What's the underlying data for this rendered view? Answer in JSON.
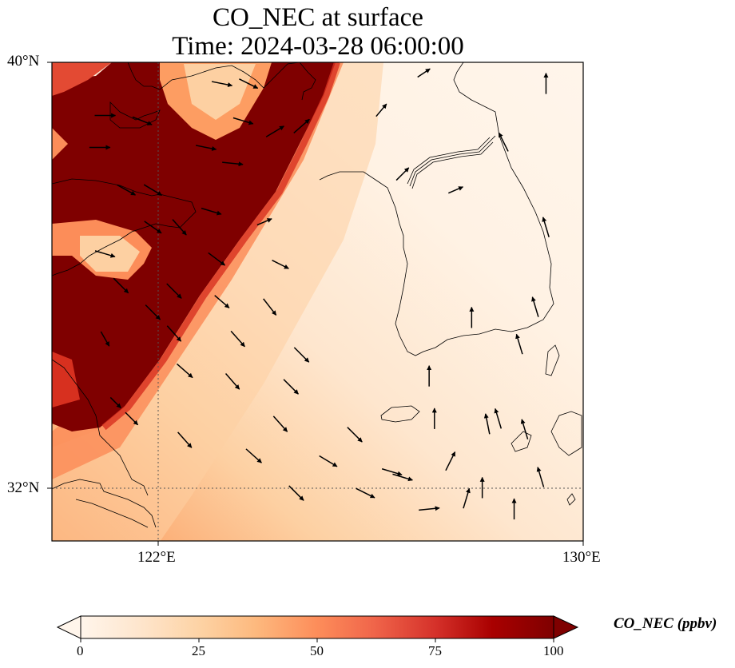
{
  "title": {
    "line1": "CO_NEC at surface",
    "line2": "Time: 2024-03-28 06:00:00"
  },
  "map": {
    "lon_range": [
      120,
      130
    ],
    "lat_range": [
      31,
      40
    ],
    "gridlines": {
      "lon": [
        122
      ],
      "lat": [
        32
      ]
    },
    "ticks": {
      "lat": [
        {
          "value": 40,
          "label": "40°N"
        },
        {
          "value": 32,
          "label": "32°N"
        }
      ],
      "lon": [
        {
          "value": 122,
          "label": "122°E"
        },
        {
          "value": 130,
          "label": "130°E"
        }
      ]
    }
  },
  "chart_data": {
    "type": "heatmap",
    "title": "CO_NEC at surface",
    "subtitle": "Time: 2024-03-28 06:00:00",
    "variable": "CO_NEC",
    "units": "ppbv",
    "colorbar": {
      "label": "CO_NEC (ppbv)",
      "range": [
        0,
        100
      ],
      "ticks": [
        0,
        25,
        50,
        75,
        100
      ],
      "extend": "both",
      "colormap": [
        "#fff5eb",
        "#fee6ce",
        "#fdd0a2",
        "#fdae6b",
        "#fd8d3c",
        "#f16913",
        "#e34a33",
        "#b30000",
        "#7f0000"
      ]
    },
    "plume": {
      "description_values": "saturated (>=100 ppbv) band from NW to SW of domain",
      "max_value": 100,
      "background_value": 3
    },
    "wind_vectors": [
      {
        "lon": 123.2,
        "lat": 39.6,
        "u": 1,
        "v": -0.2
      },
      {
        "lon": 123.7,
        "lat": 39.6,
        "u": 1,
        "v": -0.5
      },
      {
        "lon": 121.0,
        "lat": 39.0,
        "u": 1,
        "v": 0
      },
      {
        "lon": 121.7,
        "lat": 38.9,
        "u": 1,
        "v": -0.4
      },
      {
        "lon": 123.6,
        "lat": 38.9,
        "u": 1,
        "v": -0.3
      },
      {
        "lon": 124.2,
        "lat": 38.7,
        "u": 1,
        "v": 0.6
      },
      {
        "lon": 124.7,
        "lat": 38.8,
        "u": 0.8,
        "v": 0.7
      },
      {
        "lon": 120.9,
        "lat": 38.4,
        "u": 1,
        "v": 0
      },
      {
        "lon": 122.9,
        "lat": 38.4,
        "u": 1,
        "v": -0.2
      },
      {
        "lon": 123.4,
        "lat": 38.1,
        "u": 1,
        "v": -0.1
      },
      {
        "lon": 121.4,
        "lat": 37.6,
        "u": 0.9,
        "v": -0.5
      },
      {
        "lon": 121.9,
        "lat": 37.6,
        "u": 1,
        "v": -0.6
      },
      {
        "lon": 123.0,
        "lat": 37.2,
        "u": 1,
        "v": -0.3
      },
      {
        "lon": 124.0,
        "lat": 37.0,
        "u": 0.7,
        "v": 0.3
      },
      {
        "lon": 121.9,
        "lat": 36.9,
        "u": 1,
        "v": -0.7
      },
      {
        "lon": 122.4,
        "lat": 36.9,
        "u": 0.8,
        "v": -0.9
      },
      {
        "lon": 121.0,
        "lat": 36.4,
        "u": 1,
        "v": -0.3
      },
      {
        "lon": 123.1,
        "lat": 36.3,
        "u": 0.8,
        "v": -0.6
      },
      {
        "lon": 124.3,
        "lat": 36.2,
        "u": 0.8,
        "v": -0.4
      },
      {
        "lon": 121.3,
        "lat": 35.8,
        "u": 0.8,
        "v": -0.8
      },
      {
        "lon": 122.3,
        "lat": 35.7,
        "u": 0.8,
        "v": -0.8
      },
      {
        "lon": 123.2,
        "lat": 35.5,
        "u": 0.7,
        "v": -0.6
      },
      {
        "lon": 124.1,
        "lat": 35.4,
        "u": 0.7,
        "v": -0.9
      },
      {
        "lon": 121.9,
        "lat": 35.3,
        "u": 0.8,
        "v": -0.8
      },
      {
        "lon": 121.0,
        "lat": 34.8,
        "u": 0.4,
        "v": -0.7
      },
      {
        "lon": 122.3,
        "lat": 34.9,
        "u": 0.8,
        "v": -0.9
      },
      {
        "lon": 123.5,
        "lat": 34.8,
        "u": 0.8,
        "v": -0.9
      },
      {
        "lon": 124.7,
        "lat": 34.5,
        "u": 1,
        "v": -1
      },
      {
        "lon": 122.5,
        "lat": 34.2,
        "u": 0.8,
        "v": -0.7
      },
      {
        "lon": 123.4,
        "lat": 34.0,
        "u": 0.7,
        "v": -0.8
      },
      {
        "lon": 124.5,
        "lat": 33.9,
        "u": 1,
        "v": -1.0
      },
      {
        "lon": 121.2,
        "lat": 33.6,
        "u": 0.5,
        "v": -0.5
      },
      {
        "lon": 121.5,
        "lat": 33.3,
        "u": 0.6,
        "v": -0.6
      },
      {
        "lon": 124.3,
        "lat": 33.2,
        "u": 0.8,
        "v": -0.9
      },
      {
        "lon": 125.7,
        "lat": 33.0,
        "u": 0.8,
        "v": -0.8
      },
      {
        "lon": 122.5,
        "lat": 32.9,
        "u": 0.8,
        "v": -0.9
      },
      {
        "lon": 123.8,
        "lat": 32.6,
        "u": 0.9,
        "v": -0.8
      },
      {
        "lon": 125.2,
        "lat": 32.5,
        "u": 1,
        "v": -0.6
      },
      {
        "lon": 126.4,
        "lat": 32.3,
        "u": 1,
        "v": -0.3
      },
      {
        "lon": 127.5,
        "lat": 32.5,
        "u": 0.5,
        "v": 1
      },
      {
        "lon": 128.2,
        "lat": 33.2,
        "u": -0.2,
        "v": 1
      },
      {
        "lon": 127.2,
        "lat": 33.3,
        "u": 0,
        "v": 1
      },
      {
        "lon": 126.6,
        "lat": 32.2,
        "u": 1,
        "v": -0.3
      },
      {
        "lon": 124.6,
        "lat": 31.9,
        "u": 0.8,
        "v": -0.8
      },
      {
        "lon": 125.9,
        "lat": 31.9,
        "u": 1,
        "v": -0.5
      },
      {
        "lon": 127.1,
        "lat": 31.6,
        "u": 1,
        "v": 0.1
      },
      {
        "lon": 127.8,
        "lat": 31.8,
        "u": 0.3,
        "v": 1
      },
      {
        "lon": 128.1,
        "lat": 32.0,
        "u": 0,
        "v": 1
      },
      {
        "lon": 128.7,
        "lat": 31.6,
        "u": 0,
        "v": 1
      },
      {
        "lon": 129.2,
        "lat": 32.2,
        "u": -0.3,
        "v": 1
      },
      {
        "lon": 128.4,
        "lat": 33.3,
        "u": -0.3,
        "v": 1
      },
      {
        "lon": 128.9,
        "lat": 33.1,
        "u": -0.3,
        "v": 1
      },
      {
        "lon": 127.1,
        "lat": 34.1,
        "u": 0,
        "v": 1
      },
      {
        "lon": 127.9,
        "lat": 35.2,
        "u": 0,
        "v": 1
      },
      {
        "lon": 128.8,
        "lat": 34.7,
        "u": -0.3,
        "v": 1
      },
      {
        "lon": 129.1,
        "lat": 35.4,
        "u": -0.3,
        "v": 1
      },
      {
        "lon": 129.3,
        "lat": 36.9,
        "u": -0.3,
        "v": 1
      },
      {
        "lon": 128.5,
        "lat": 38.5,
        "u": -0.5,
        "v": 1
      },
      {
        "lon": 129.3,
        "lat": 39.6,
        "u": 0,
        "v": 1
      },
      {
        "lon": 127.0,
        "lat": 39.8,
        "u": 0.6,
        "v": 0.4
      },
      {
        "lon": 127.6,
        "lat": 37.6,
        "u": 0.7,
        "v": 0.3
      },
      {
        "lon": 126.6,
        "lat": 37.9,
        "u": 0.6,
        "v": 0.6
      },
      {
        "lon": 126.2,
        "lat": 39.1,
        "u": 0.5,
        "v": 0.6
      }
    ]
  }
}
